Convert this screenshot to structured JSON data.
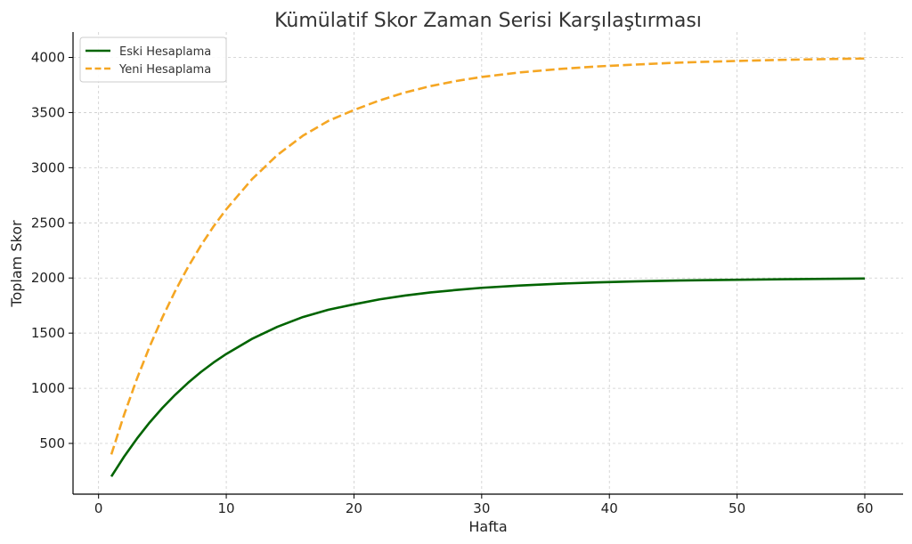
{
  "chart_data": {
    "type": "line",
    "title": "Kümülatif Skor Zaman Serisi Karşılaştırması",
    "xlabel": "Hafta",
    "ylabel": "Toplam Skor",
    "xlim": [
      -2,
      63
    ],
    "ylim": [
      40,
      4230
    ],
    "xticks": [
      0,
      10,
      20,
      30,
      40,
      50,
      60
    ],
    "yticks": [
      500,
      1000,
      1500,
      2000,
      2500,
      3000,
      3500,
      4000
    ],
    "grid": true,
    "legend_position": "top-left",
    "x": [
      1,
      2,
      3,
      4,
      5,
      6,
      7,
      8,
      9,
      10,
      12,
      14,
      16,
      18,
      20,
      22,
      24,
      26,
      28,
      30,
      33,
      36,
      39,
      42,
      45,
      48,
      51,
      54,
      57,
      60
    ],
    "series": [
      {
        "name": "Eski Hesaplama",
        "color": "#006400",
        "style": "solid",
        "values": [
          200,
          380,
          543,
          690,
          822,
          941,
          1049,
          1146,
          1233,
          1311,
          1447,
          1557,
          1646,
          1712,
          1761,
          1806,
          1841,
          1869,
          1891,
          1911,
          1932,
          1948,
          1960,
          1969,
          1976,
          1981,
          1985,
          1989,
          1992,
          1995
        ]
      },
      {
        "name": "Yeni Hesaplama",
        "color": "#f5a623",
        "style": "dashed",
        "values": [
          400,
          760,
          1085,
          1378,
          1643,
          1882,
          2098,
          2292,
          2467,
          2623,
          2894,
          3115,
          3290,
          3425,
          3523,
          3610,
          3682,
          3740,
          3786,
          3823,
          3864,
          3894,
          3918,
          3935,
          3951,
          3962,
          3971,
          3979,
          3985,
          3990
        ]
      }
    ]
  }
}
